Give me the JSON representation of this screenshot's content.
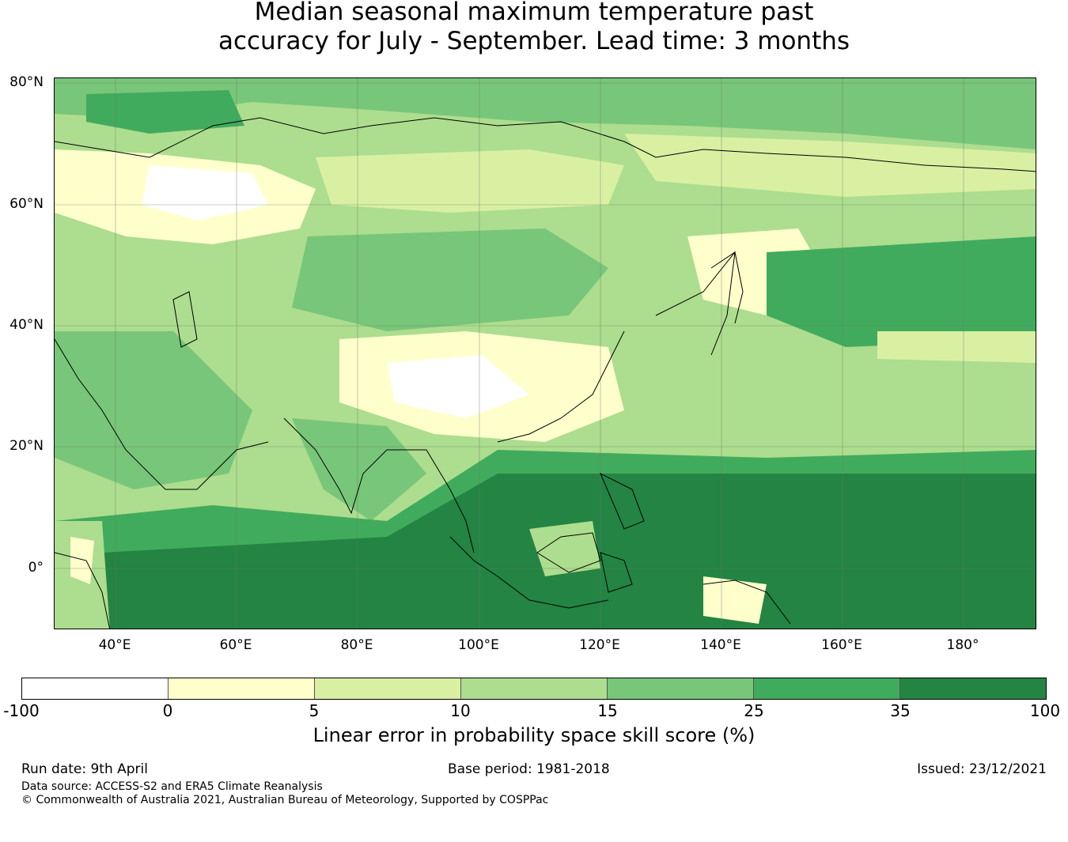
{
  "title": {
    "line1": "Median seasonal maximum temperature past",
    "line2": "accuracy for July - September. Lead time: 3 months"
  },
  "axes": {
    "lat_labels": [
      "80°N",
      "60°N",
      "40°N",
      "20°N",
      "0°"
    ],
    "lon_labels": [
      "40°E",
      "60°E",
      "80°E",
      "100°E",
      "120°E",
      "140°E",
      "160°E",
      "180°"
    ]
  },
  "colorbar": {
    "ticks": [
      "-100",
      "0",
      "5",
      "10",
      "15",
      "25",
      "35",
      "100"
    ],
    "colors": [
      "#ffffff",
      "#ffffcc",
      "#d9f0a3",
      "#addd8e",
      "#78c679",
      "#41ab5d",
      "#238443"
    ],
    "label": "Linear error in probability space skill score (%)"
  },
  "footer": {
    "run_date": "Run date: 9th April",
    "base_period": "Base period: 1981-2018",
    "issued": "Issued: 23/12/2021",
    "data_source": "Data source: ACCESS-S2 and ERA5 Climate Reanalysis",
    "copyright": "© Commonwealth of Australia 2021, Australian Bureau of Meteorology, Supported by COSPPac"
  }
}
